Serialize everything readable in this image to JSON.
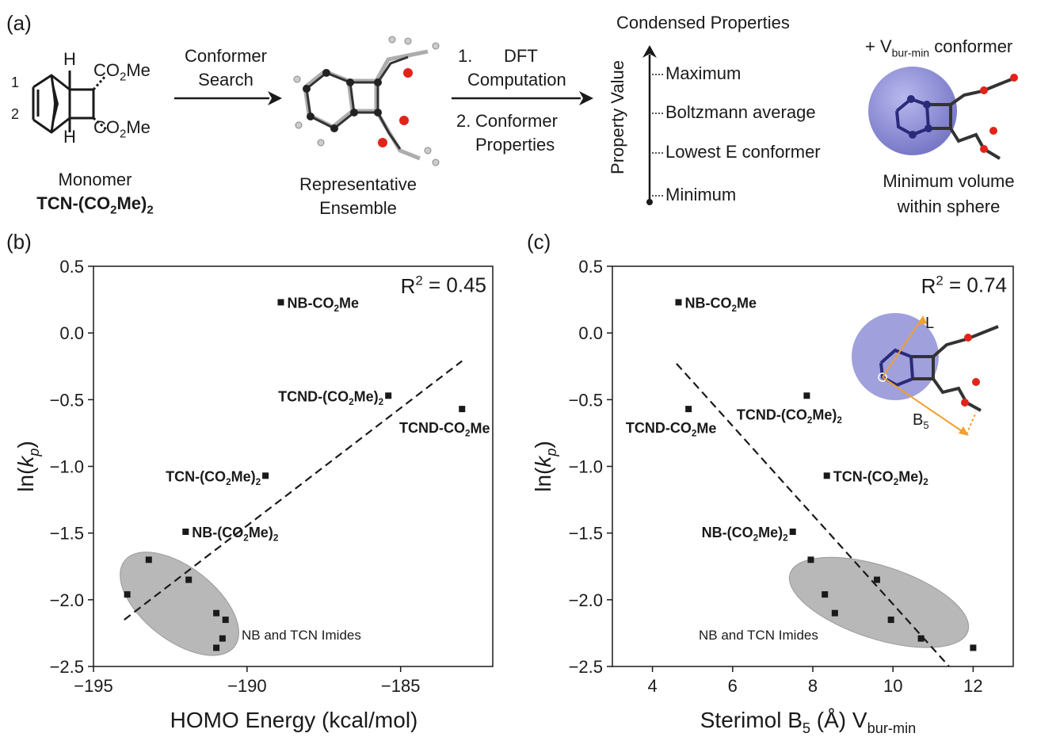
{
  "panel_a": {
    "letter": "(a)",
    "monomer_caption": "Monomer",
    "monomer_name": "TCN-(CO",
    "monomer_name_sub": "2",
    "monomer_name_tail": "Me)",
    "monomer_name_sub2": "2",
    "molecule_labels": {
      "h_top": "H",
      "h_bottom": "H",
      "pos1": "1",
      "pos2": "2",
      "ester_top": "CO",
      "ester_top_sub": "2",
      "ester_top_tail": "Me",
      "ester_bottom": "CO",
      "ester_bottom_sub": "2",
      "ester_bottom_tail": "Me"
    },
    "step1_line1": "Conformer",
    "step1_line2": "Search",
    "ensemble_line1": "Representative",
    "ensemble_line2": "Ensemble",
    "step2_num1": "1.",
    "step2_word1": "DFT",
    "step2_word1b": "Computation",
    "step2_num2": "2.",
    "step2_word2": "Conformer",
    "step2_word2b": "Properties",
    "condensed_title": "Condensed Properties",
    "property_axis": "Property Value",
    "levels": [
      "Maximum",
      "Boltzmann average",
      "Lowest E conformer",
      "Minimum"
    ],
    "vbur_prefix": "+ V",
    "vbur_sub": "bur-min",
    "vbur_suffix": " conformer",
    "sphere_line1": "Minimum volume",
    "sphere_line2": "within sphere"
  },
  "colors": {
    "sphere": "#8f8fd6",
    "oxygen": "#e2231a",
    "carbon": "#222222",
    "highlight_carbon": "#2a2a7a",
    "ellipse": "#b8b8b8",
    "arrow_orange": "#f0a030"
  },
  "chart_data": [
    {
      "type": "scatter",
      "panel": "(b)",
      "r2_label": "R",
      "r2_sup": "2",
      "r2_value": " = 0.45",
      "xlabel": "HOMO Energy (kcal/mol)",
      "ylabel_pre": "ln(",
      "ylabel_italic": "k",
      "ylabel_sub": "p",
      "ylabel_post": ")",
      "xlim": [
        -195,
        -182
      ],
      "ylim": [
        -2.5,
        0.5
      ],
      "xticks": [
        -195,
        -190,
        -185
      ],
      "yticks": [
        0.5,
        0.0,
        -0.5,
        -1.0,
        -1.5,
        -2.0,
        -2.5
      ],
      "fit_line": {
        "x": [
          -194,
          -183
        ],
        "y": [
          -2.15,
          -0.21
        ]
      },
      "cluster_label": "NB and TCN Imides",
      "points": [
        {
          "x": -188.9,
          "y": 0.23,
          "label": "NB-CO",
          "sub": "2",
          "tail": "Me",
          "label_side": "right"
        },
        {
          "x": -185.4,
          "y": -0.47,
          "label": "TCND-(CO",
          "sub": "2",
          "tail": "Me)",
          "sub2": "2",
          "label_side": "left"
        },
        {
          "x": -183.0,
          "y": -0.57,
          "label": "TCND-CO",
          "sub": "2",
          "tail": "Me",
          "label_side": "below"
        },
        {
          "x": -189.4,
          "y": -1.07,
          "label": "TCN-(CO",
          "sub": "2",
          "tail": "Me)",
          "sub2": "2",
          "label_side": "left"
        },
        {
          "x": -192.0,
          "y": -1.49,
          "label": "NB-(CO",
          "sub": "2",
          "tail": "Me)",
          "sub2": "2",
          "label_side": "right"
        },
        {
          "x": -193.2,
          "y": -1.7
        },
        {
          "x": -193.9,
          "y": -1.96
        },
        {
          "x": -191.9,
          "y": -1.85
        },
        {
          "x": -191.0,
          "y": -2.1
        },
        {
          "x": -190.7,
          "y": -2.15
        },
        {
          "x": -190.8,
          "y": -2.29
        },
        {
          "x": -191.0,
          "y": -2.36
        }
      ]
    },
    {
      "type": "scatter",
      "panel": "(c)",
      "r2_label": "R",
      "r2_sup": "2",
      "r2_value": " = 0.74",
      "xlabel_pre": "Sterimol B",
      "xlabel_sub": "5",
      "xlabel_mid": " (Å) V",
      "xlabel_sub2": "bur-min",
      "ylabel_pre": "ln(",
      "ylabel_italic": "k",
      "ylabel_sub": "p",
      "ylabel_post": ")",
      "xlim": [
        3,
        13
      ],
      "ylim": [
        -2.5,
        0.5
      ],
      "xticks": [
        4,
        6,
        8,
        10,
        12
      ],
      "yticks": [
        0.5,
        0.0,
        -0.5,
        -1.0,
        -1.5,
        -2.0,
        -2.5
      ],
      "fit_line": {
        "x": [
          4.6,
          11.4
        ],
        "y": [
          -0.23,
          -2.5
        ]
      },
      "cluster_label": "NB and TCN Imides",
      "inset_L": "L",
      "inset_B": "B",
      "inset_B_sub": "5",
      "points": [
        {
          "x": 4.65,
          "y": 0.23,
          "label": "NB-CO",
          "sub": "2",
          "tail": "Me",
          "label_side": "right"
        },
        {
          "x": 4.9,
          "y": -0.57,
          "label": "TCND-CO",
          "sub": "2",
          "tail": "Me",
          "label_side": "below"
        },
        {
          "x": 7.85,
          "y": -0.47,
          "label": "TCND-(CO",
          "sub": "2",
          "tail": "Me)",
          "sub2": "2",
          "label_side": "below"
        },
        {
          "x": 8.35,
          "y": -1.07,
          "label": "TCN-(CO",
          "sub": "2",
          "tail": "Me)",
          "sub2": "2",
          "label_side": "right"
        },
        {
          "x": 7.5,
          "y": -1.49,
          "label": "NB-(CO",
          "sub": "2",
          "tail": "Me)",
          "sub2": "2",
          "label_side": "left"
        },
        {
          "x": 7.95,
          "y": -1.7
        },
        {
          "x": 8.3,
          "y": -1.96
        },
        {
          "x": 8.55,
          "y": -2.1
        },
        {
          "x": 9.6,
          "y": -1.85
        },
        {
          "x": 9.95,
          "y": -2.15
        },
        {
          "x": 10.7,
          "y": -2.29
        },
        {
          "x": 12.0,
          "y": -2.36
        }
      ]
    }
  ]
}
